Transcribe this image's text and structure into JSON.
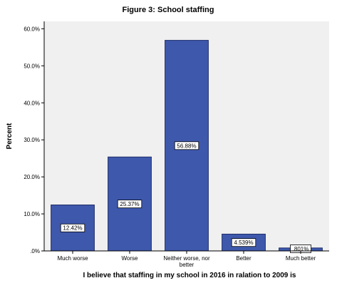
{
  "chart_data": {
    "type": "bar",
    "title": "Figure 3: School staffing",
    "xlabel": "I believe that staffing in my school in 2016 in ralation to 2009 is",
    "ylabel": "Percent",
    "categories": [
      "Much worse",
      "Worse",
      "Neither worse, nor better",
      "Better",
      "Much better"
    ],
    "category_label_lines": [
      [
        "Much worse"
      ],
      [
        "Worse"
      ],
      [
        "Neither worse, nor",
        "better"
      ],
      [
        "Better"
      ],
      [
        "Much better"
      ]
    ],
    "values": [
      12.42,
      25.37,
      56.88,
      4.539,
      0.801
    ],
    "value_labels": [
      "12.42%",
      "25.37%",
      "56.88%",
      "4.539%",
      ".801%"
    ],
    "ylim": [
      0,
      62
    ],
    "yticks": [
      0,
      10,
      20,
      30,
      40,
      50,
      60
    ],
    "ytick_labels": [
      ".0%",
      "10.0%",
      "20.0%",
      "30.0%",
      "40.0%",
      "50.0%",
      "60.0%"
    ],
    "grid": false,
    "colors": {
      "plot_background": "#f0f0f0",
      "bar_fill": "#3e58ac",
      "bar_stroke": "#1e2d6a"
    }
  }
}
